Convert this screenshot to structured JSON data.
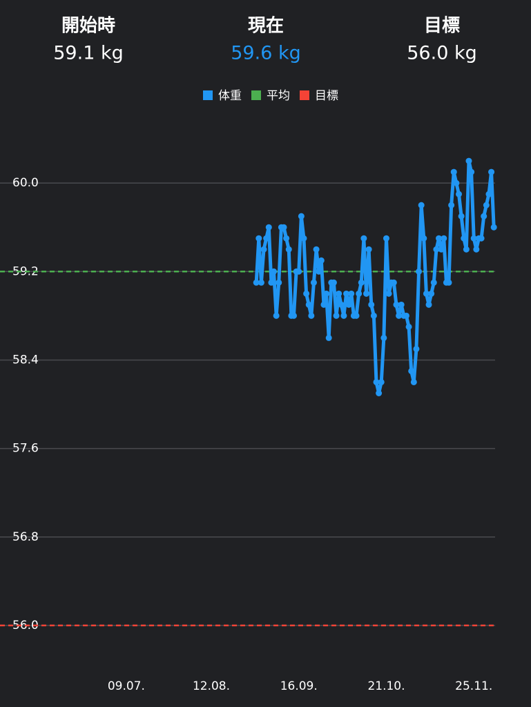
{
  "header": {
    "stats": [
      {
        "label": "開始時",
        "value": "59.1 kg"
      },
      {
        "label": "現在",
        "value": "59.6 kg"
      },
      {
        "label": "目標",
        "value": "56.0 kg"
      }
    ]
  },
  "chart_data": {
    "type": "line",
    "x": [
      242,
      243,
      244,
      245,
      246,
      247,
      248,
      249,
      250,
      251,
      252,
      253,
      254,
      255,
      256,
      257,
      258,
      259,
      260,
      261,
      262,
      263,
      264,
      265,
      266,
      267,
      268,
      269,
      270,
      271,
      272,
      273,
      274,
      275,
      276,
      277,
      278,
      279,
      280,
      281,
      282,
      283,
      284,
      285,
      286,
      287,
      288,
      289,
      290,
      291,
      292,
      293,
      294,
      295,
      296,
      297,
      298,
      299,
      300,
      301,
      302,
      303,
      304,
      305,
      306,
      307,
      308,
      309,
      310,
      311,
      312,
      313,
      314,
      315,
      316,
      317,
      318,
      319,
      320,
      321,
      322,
      323,
      324,
      325,
      326,
      327,
      328,
      329,
      330,
      331,
      332,
      333,
      334,
      335,
      336,
      337
    ],
    "series": [
      {
        "name": "体重",
        "color": "#2196f3",
        "values": [
          59.1,
          59.5,
          59.1,
          59.4,
          59.5,
          59.6,
          59.1,
          59.2,
          58.8,
          59.1,
          59.6,
          59.6,
          59.5,
          59.4,
          58.8,
          58.8,
          59.2,
          59.2,
          59.7,
          59.5,
          59.0,
          58.9,
          58.8,
          59.1,
          59.4,
          59.2,
          59.3,
          58.9,
          59.0,
          58.6,
          59.1,
          59.1,
          58.8,
          59.0,
          58.9,
          58.8,
          59.0,
          58.9,
          59.0,
          58.8,
          58.8,
          59.0,
          59.1,
          59.5,
          59.0,
          59.4,
          58.9,
          58.8,
          58.2,
          58.1,
          58.2,
          58.6,
          59.5,
          59.0,
          59.1,
          59.1,
          58.9,
          58.8,
          58.9,
          58.8,
          58.8,
          58.7,
          58.3,
          58.2,
          58.5,
          59.2,
          59.8,
          59.5,
          59.0,
          58.9,
          59.0,
          59.1,
          59.4,
          59.5,
          59.4,
          59.5,
          59.1,
          59.1,
          59.8,
          60.1,
          60.0,
          59.9,
          59.7,
          59.5,
          59.4,
          60.2,
          60.1,
          59.5,
          59.4,
          59.5,
          59.5,
          59.7,
          59.8,
          59.9,
          60.1,
          59.6
        ]
      }
    ],
    "average": {
      "name": "平均",
      "color": "#4caf50",
      "value": 59.2
    },
    "goal": {
      "name": "目標",
      "color": "#f44336",
      "value": 56.0
    },
    "xlim": [
      139.5,
      337.5
    ],
    "xticks": [
      {
        "value": 190,
        "label": "09.07."
      },
      {
        "value": 224,
        "label": "12.08."
      },
      {
        "value": 259,
        "label": "16.09."
      },
      {
        "value": 294,
        "label": "21.10."
      },
      {
        "value": 329,
        "label": "25.11."
      }
    ],
    "ylim": [
      55.6,
      60.6
    ],
    "yticks": [
      {
        "value": 56,
        "label": "56.0"
      },
      {
        "value": 56.8,
        "label": "56.8"
      },
      {
        "value": 57.6,
        "label": "57.6"
      },
      {
        "value": 58.4,
        "label": "58.4"
      },
      {
        "value": 59.2,
        "label": "59.2"
      },
      {
        "value": 60,
        "label": "60.0"
      }
    ],
    "grid": true
  }
}
